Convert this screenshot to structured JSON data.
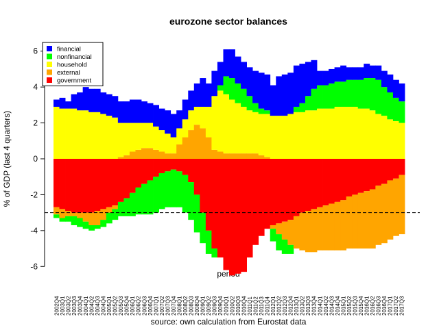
{
  "chart_data": {
    "type": "stacked_bar",
    "title": "eurozone sector balances",
    "y_label": "% of GDP (last 4 quarters)",
    "x_label": "period",
    "source": "source: own calculation from Eurostat data",
    "categories": [
      "2002Q4",
      "2003Q1",
      "2003Q2",
      "2003Q3",
      "2003Q4",
      "2004Q1",
      "2004Q2",
      "2004Q3",
      "2004Q4",
      "2005Q1",
      "2005Q2",
      "2005Q3",
      "2005Q4",
      "2006Q1",
      "2006Q2",
      "2006Q3",
      "2006Q4",
      "2007Q1",
      "2007Q2",
      "2007Q3",
      "2007Q4",
      "2008Q1",
      "2008Q2",
      "2008Q3",
      "2008Q4",
      "2009Q1",
      "2009Q2",
      "2009Q3",
      "2009Q4",
      "2010Q1",
      "2010Q2",
      "2010Q3",
      "2010Q4",
      "2011Q1",
      "2011Q2",
      "2011Q3",
      "2011Q4",
      "2012Q1",
      "2012Q2",
      "2012Q3",
      "2012Q4",
      "2013Q1",
      "2013Q2",
      "2013Q3",
      "2013Q4",
      "2014Q1",
      "2014Q2",
      "2014Q3",
      "2014Q4",
      "2015Q1",
      "2015Q2",
      "2015Q3",
      "2015Q4",
      "2016Q1",
      "2016Q2",
      "2016Q3",
      "2016Q4",
      "2017Q1",
      "2017Q2",
      "2017Q3"
    ],
    "series": [
      {
        "name": "financial",
        "color": "#0000ff",
        "values": [
          0.4,
          0.6,
          0.4,
          0.8,
          1.0,
          1.3,
          1.3,
          1.3,
          1.2,
          1.2,
          1.2,
          1.2,
          1.2,
          1.3,
          1.3,
          1.2,
          1.1,
          1.2,
          1.2,
          1.3,
          1.3,
          1.0,
          1.1,
          1.1,
          1.3,
          1.6,
          1.3,
          1.4,
          1.3,
          1.5,
          1.6,
          1.5,
          1.5,
          1.6,
          1.8,
          2.0,
          2.0,
          1.7,
          2.2,
          2.3,
          2.3,
          2.3,
          2.2,
          1.9,
          1.6,
          0.8,
          0.8,
          0.8,
          0.8,
          0.9,
          0.7,
          0.7,
          0.7,
          0.8,
          0.7,
          0.8,
          0.9,
          1.0,
          1.0,
          1.0
        ]
      },
      {
        "name": "nonfinancial",
        "color": "#00ff00",
        "values": [
          -0.2,
          -0.2,
          -0.3,
          -0.5,
          -0.5,
          -0.4,
          -0.3,
          -0.2,
          -0.4,
          -0.6,
          -0.6,
          -0.8,
          -1.0,
          -1.3,
          -1.5,
          -1.7,
          -1.9,
          -2.0,
          -2.0,
          -2.0,
          -2.1,
          -2.0,
          -2.1,
          -2.1,
          -2.1,
          -1.7,
          -1.3,
          -0.5,
          0.3,
          1.0,
          1.2,
          1.1,
          1.0,
          0.8,
          0.5,
          0.3,
          0.2,
          -0.7,
          -0.9,
          -0.8,
          -0.5,
          0.3,
          0.5,
          0.8,
          1.2,
          1.3,
          1.3,
          1.4,
          1.4,
          1.4,
          1.5,
          1.5,
          1.6,
          1.7,
          1.8,
          1.9,
          1.6,
          1.5,
          1.3,
          1.2
        ]
      },
      {
        "name": "household",
        "color": "#ffff00",
        "values": [
          2.9,
          2.8,
          2.8,
          2.8,
          2.7,
          2.7,
          2.6,
          2.6,
          2.5,
          2.4,
          2.3,
          1.9,
          1.8,
          1.6,
          1.5,
          1.4,
          1.4,
          1.3,
          1.2,
          1.1,
          0.9,
          0.9,
          1.0,
          1.1,
          1.0,
          1.2,
          1.7,
          3.0,
          3.4,
          3.3,
          3.0,
          2.8,
          2.6,
          2.4,
          2.3,
          2.3,
          2.4,
          2.4,
          2.4,
          2.4,
          2.5,
          2.6,
          2.6,
          2.7,
          2.7,
          2.8,
          2.8,
          2.8,
          2.9,
          2.9,
          2.9,
          2.9,
          2.8,
          2.8,
          2.7,
          2.5,
          2.4,
          2.2,
          2.1,
          2.0
        ]
      },
      {
        "name": "external",
        "color": "#ffa500",
        "values": [
          -0.4,
          -0.5,
          -0.3,
          -0.2,
          -0.3,
          -0.5,
          -0.7,
          -0.8,
          -0.6,
          -0.3,
          -0.2,
          0.1,
          0.2,
          0.4,
          0.5,
          0.6,
          0.6,
          0.5,
          0.4,
          0.3,
          0.3,
          0.8,
          1.2,
          1.6,
          1.9,
          1.7,
          1.2,
          0.5,
          0.4,
          0.3,
          0.3,
          0.3,
          0.3,
          0.3,
          0.3,
          0.2,
          0.1,
          -0.2,
          -0.6,
          -1.0,
          -1.4,
          -1.8,
          -2.1,
          -2.3,
          -2.4,
          -2.4,
          -2.5,
          -2.6,
          -2.7,
          -2.8,
          -2.9,
          -3.0,
          -3.1,
          -3.2,
          -3.3,
          -3.3,
          -3.3,
          -3.3,
          -3.2,
          -3.3
        ]
      },
      {
        "name": "government",
        "color": "#ff0000",
        "values": [
          -2.7,
          -2.8,
          -2.9,
          -3.0,
          -3.0,
          -3.0,
          -3.0,
          -2.9,
          -2.8,
          -2.7,
          -2.6,
          -2.4,
          -2.2,
          -1.9,
          -1.6,
          -1.4,
          -1.2,
          -1.0,
          -0.8,
          -0.7,
          -0.6,
          -0.7,
          -0.9,
          -1.3,
          -2.0,
          -3.0,
          -4.0,
          -5.0,
          -5.5,
          -6.2,
          -6.5,
          -6.4,
          -6.3,
          -5.5,
          -4.8,
          -4.3,
          -3.9,
          -3.7,
          -3.6,
          -3.5,
          -3.4,
          -3.2,
          -3.0,
          -2.9,
          -2.8,
          -2.7,
          -2.6,
          -2.5,
          -2.4,
          -2.3,
          -2.1,
          -2.0,
          -1.9,
          -1.8,
          -1.7,
          -1.5,
          -1.4,
          -1.2,
          -1.1,
          -0.9
        ]
      }
    ],
    "ylim": [
      -6.6,
      6.6
    ],
    "yticks": [
      -6,
      -4,
      -2,
      0,
      2,
      4,
      6
    ],
    "reference_line": -3,
    "legend": "top-left"
  }
}
